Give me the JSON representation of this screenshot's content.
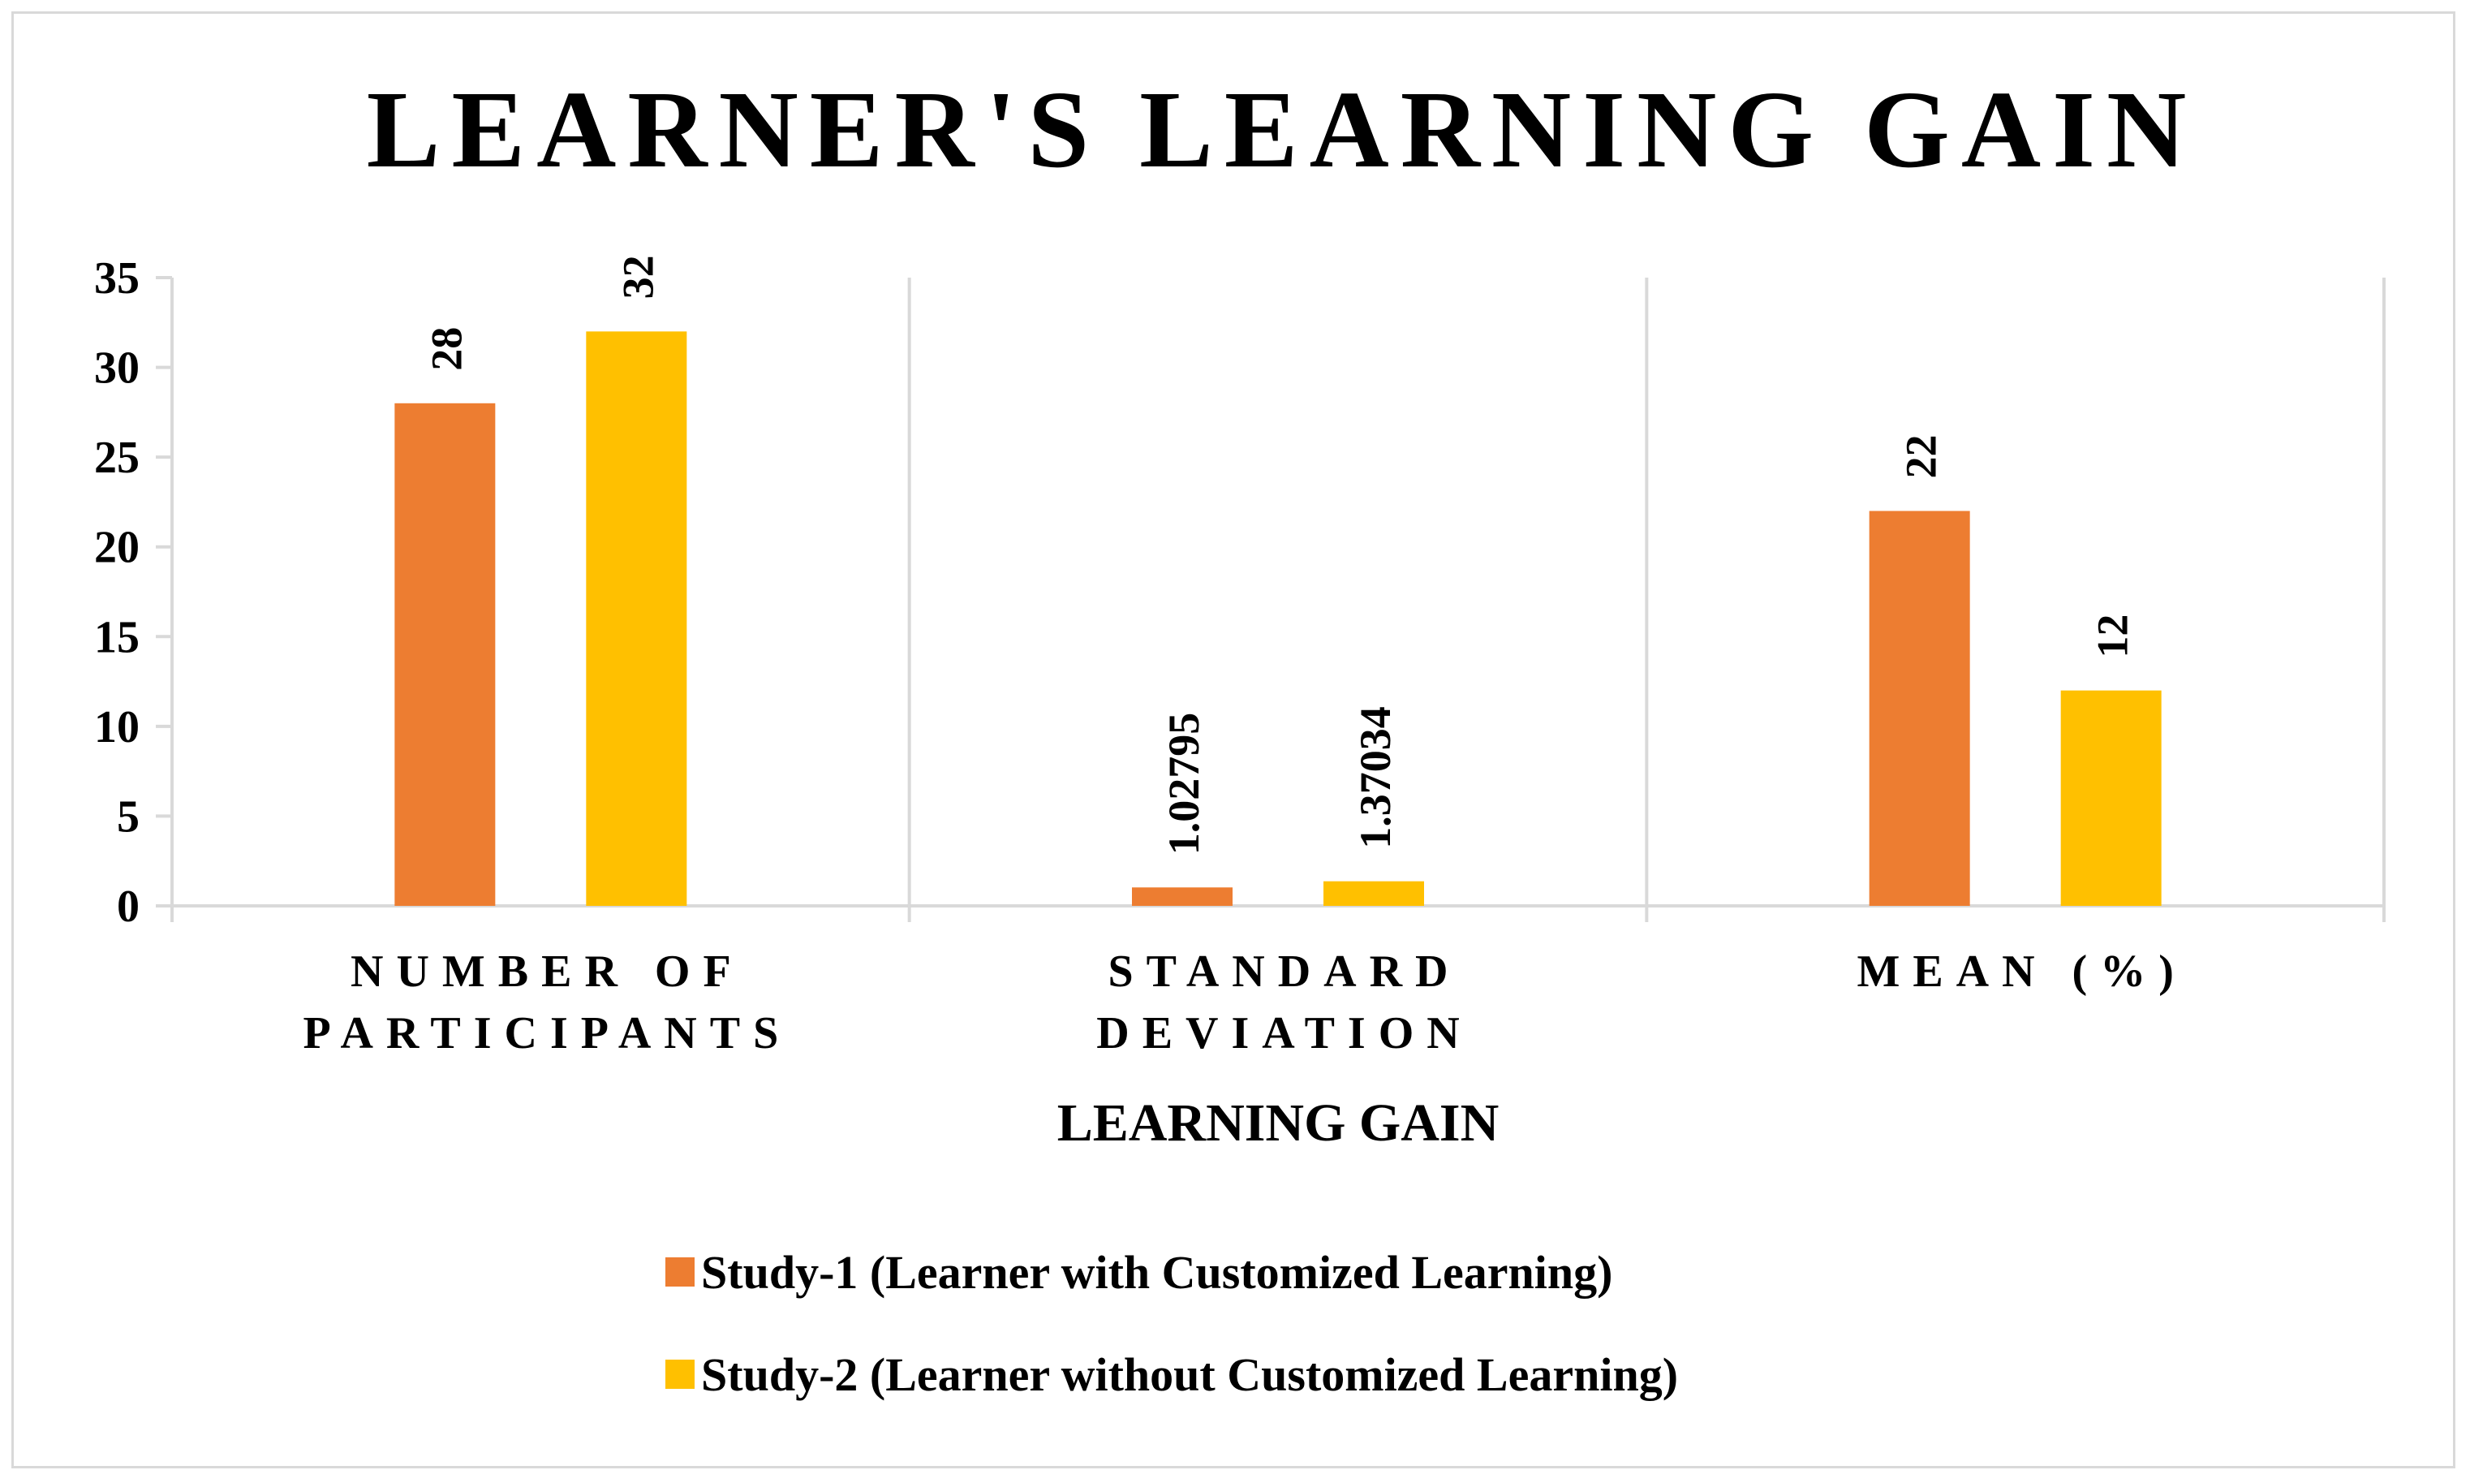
{
  "chart_data": {
    "type": "bar",
    "title": "LEARNER'S LEARNING GAIN",
    "xlabel": "LEARNING GAIN",
    "ylabel": "",
    "categories": [
      [
        "NUMBER OF",
        "PARTICIPANTS"
      ],
      [
        "STANDARD",
        "DEVIATION"
      ],
      [
        "MEAN (%)"
      ]
    ],
    "series": [
      {
        "name": "Study-1 (Learner with Customized Learning)",
        "color": "#ED7D31",
        "values": [
          28,
          1.02795,
          22
        ],
        "labels": [
          "28",
          "1.02795",
          "22"
        ]
      },
      {
        "name": "Study-2 (Learner without Customized Learning)",
        "color": "#FFC000",
        "values": [
          32,
          1.37034,
          12
        ],
        "labels": [
          "32",
          "1.37034",
          "12"
        ]
      }
    ],
    "ylim": [
      0,
      35
    ],
    "yticks": [
      0,
      5,
      10,
      15,
      20,
      25,
      30,
      35
    ],
    "grid": "vertical category separators",
    "legend_position": "bottom"
  }
}
